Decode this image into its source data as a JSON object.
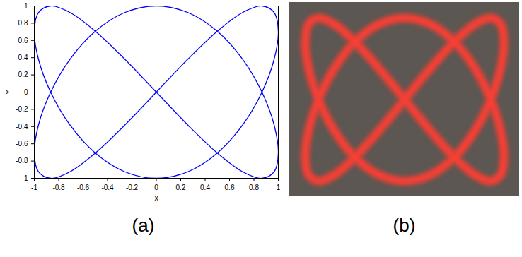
{
  "chart_data": [
    {
      "type": "line",
      "title": "(a)",
      "x_label": "X",
      "y_label": "Y",
      "xlim": [
        -1,
        1
      ],
      "ylim": [
        -1,
        1
      ],
      "xticks": [
        -1,
        -0.8,
        -0.6,
        -0.4,
        -0.2,
        0,
        0.2,
        0.4,
        0.6,
        0.8,
        1
      ],
      "yticks": [
        -1,
        -0.8,
        -0.6,
        -0.4,
        -0.2,
        0,
        0.2,
        0.4,
        0.6,
        0.8,
        1
      ],
      "grid": false,
      "line_style": "solid",
      "marker": "none",
      "x": [
        0,
        0.259,
        0.5,
        0.707,
        0.866,
        0.966,
        1,
        0.966,
        0.866,
        0.707,
        0.5,
        0.259,
        0,
        -0.259,
        -0.5,
        -0.707,
        -0.866,
        -0.966,
        -1,
        -0.966,
        -0.866,
        -0.707,
        -0.5,
        -0.259,
        0,
        0.259,
        0.5,
        0.707,
        0.866,
        0.966,
        1,
        0.966,
        0.866,
        0.707,
        0.5,
        0.259,
        0,
        -0.259,
        -0.5,
        -0.707,
        -0.866,
        -0.966,
        -1,
        -0.966,
        -0.866,
        -0.707,
        -0.5,
        -0.259,
        0
      ],
      "series": [
        {
          "color": "#0000ff",
          "values": [
            0,
            0.383,
            0.707,
            0.924,
            1,
            0.924,
            0.707,
            0.383,
            0,
            -0.383,
            -0.707,
            -0.924,
            -1,
            -0.924,
            -0.707,
            -0.383,
            0,
            0.383,
            0.707,
            0.924,
            1,
            0.924,
            0.707,
            0.383,
            0,
            -0.383,
            -0.707,
            -0.924,
            -1,
            -0.924,
            -0.707,
            -0.383,
            0,
            0.383,
            0.707,
            0.924,
            1,
            0.924,
            0.707,
            0.383,
            0,
            -0.383,
            -0.707,
            -0.924,
            -1,
            -0.924,
            -0.707,
            -0.383,
            0
          ]
        }
      ]
    },
    {
      "type": "line",
      "title": "(b)",
      "tick_labels": false,
      "line_style": "solid",
      "marker": "none",
      "x": [
        0,
        0.259,
        0.5,
        0.707,
        0.866,
        0.966,
        1,
        0.966,
        0.866,
        0.707,
        0.5,
        0.259,
        0,
        -0.259,
        -0.5,
        -0.707,
        -0.866,
        -0.966,
        -1,
        -0.966,
        -0.866,
        -0.707,
        -0.5,
        -0.259,
        0,
        0.259,
        0.5,
        0.707,
        0.866,
        0.966,
        1,
        0.966,
        0.866,
        0.707,
        0.5,
        0.259,
        0,
        -0.259,
        -0.5,
        -0.707,
        -0.866,
        -0.966,
        -1,
        -0.966,
        -0.866,
        -0.707,
        -0.5,
        -0.259,
        0
      ],
      "series": [
        {
          "color": "#ff3d33",
          "values": [
            0,
            0.383,
            0.707,
            0.924,
            1,
            0.924,
            0.707,
            0.383,
            0,
            -0.383,
            -0.707,
            -0.924,
            -1,
            -0.924,
            -0.707,
            -0.383,
            0,
            0.383,
            0.707,
            0.924,
            1,
            0.924,
            0.707,
            0.383,
            0,
            -0.383,
            -0.707,
            -0.924,
            -1,
            -0.924,
            -0.707,
            -0.383,
            0,
            0.383,
            0.707,
            0.924,
            1,
            0.924,
            0.707,
            0.383,
            0,
            -0.383,
            -0.707,
            -0.924,
            -1,
            -0.924,
            -0.707,
            -0.383,
            0
          ]
        }
      ]
    }
  ]
}
